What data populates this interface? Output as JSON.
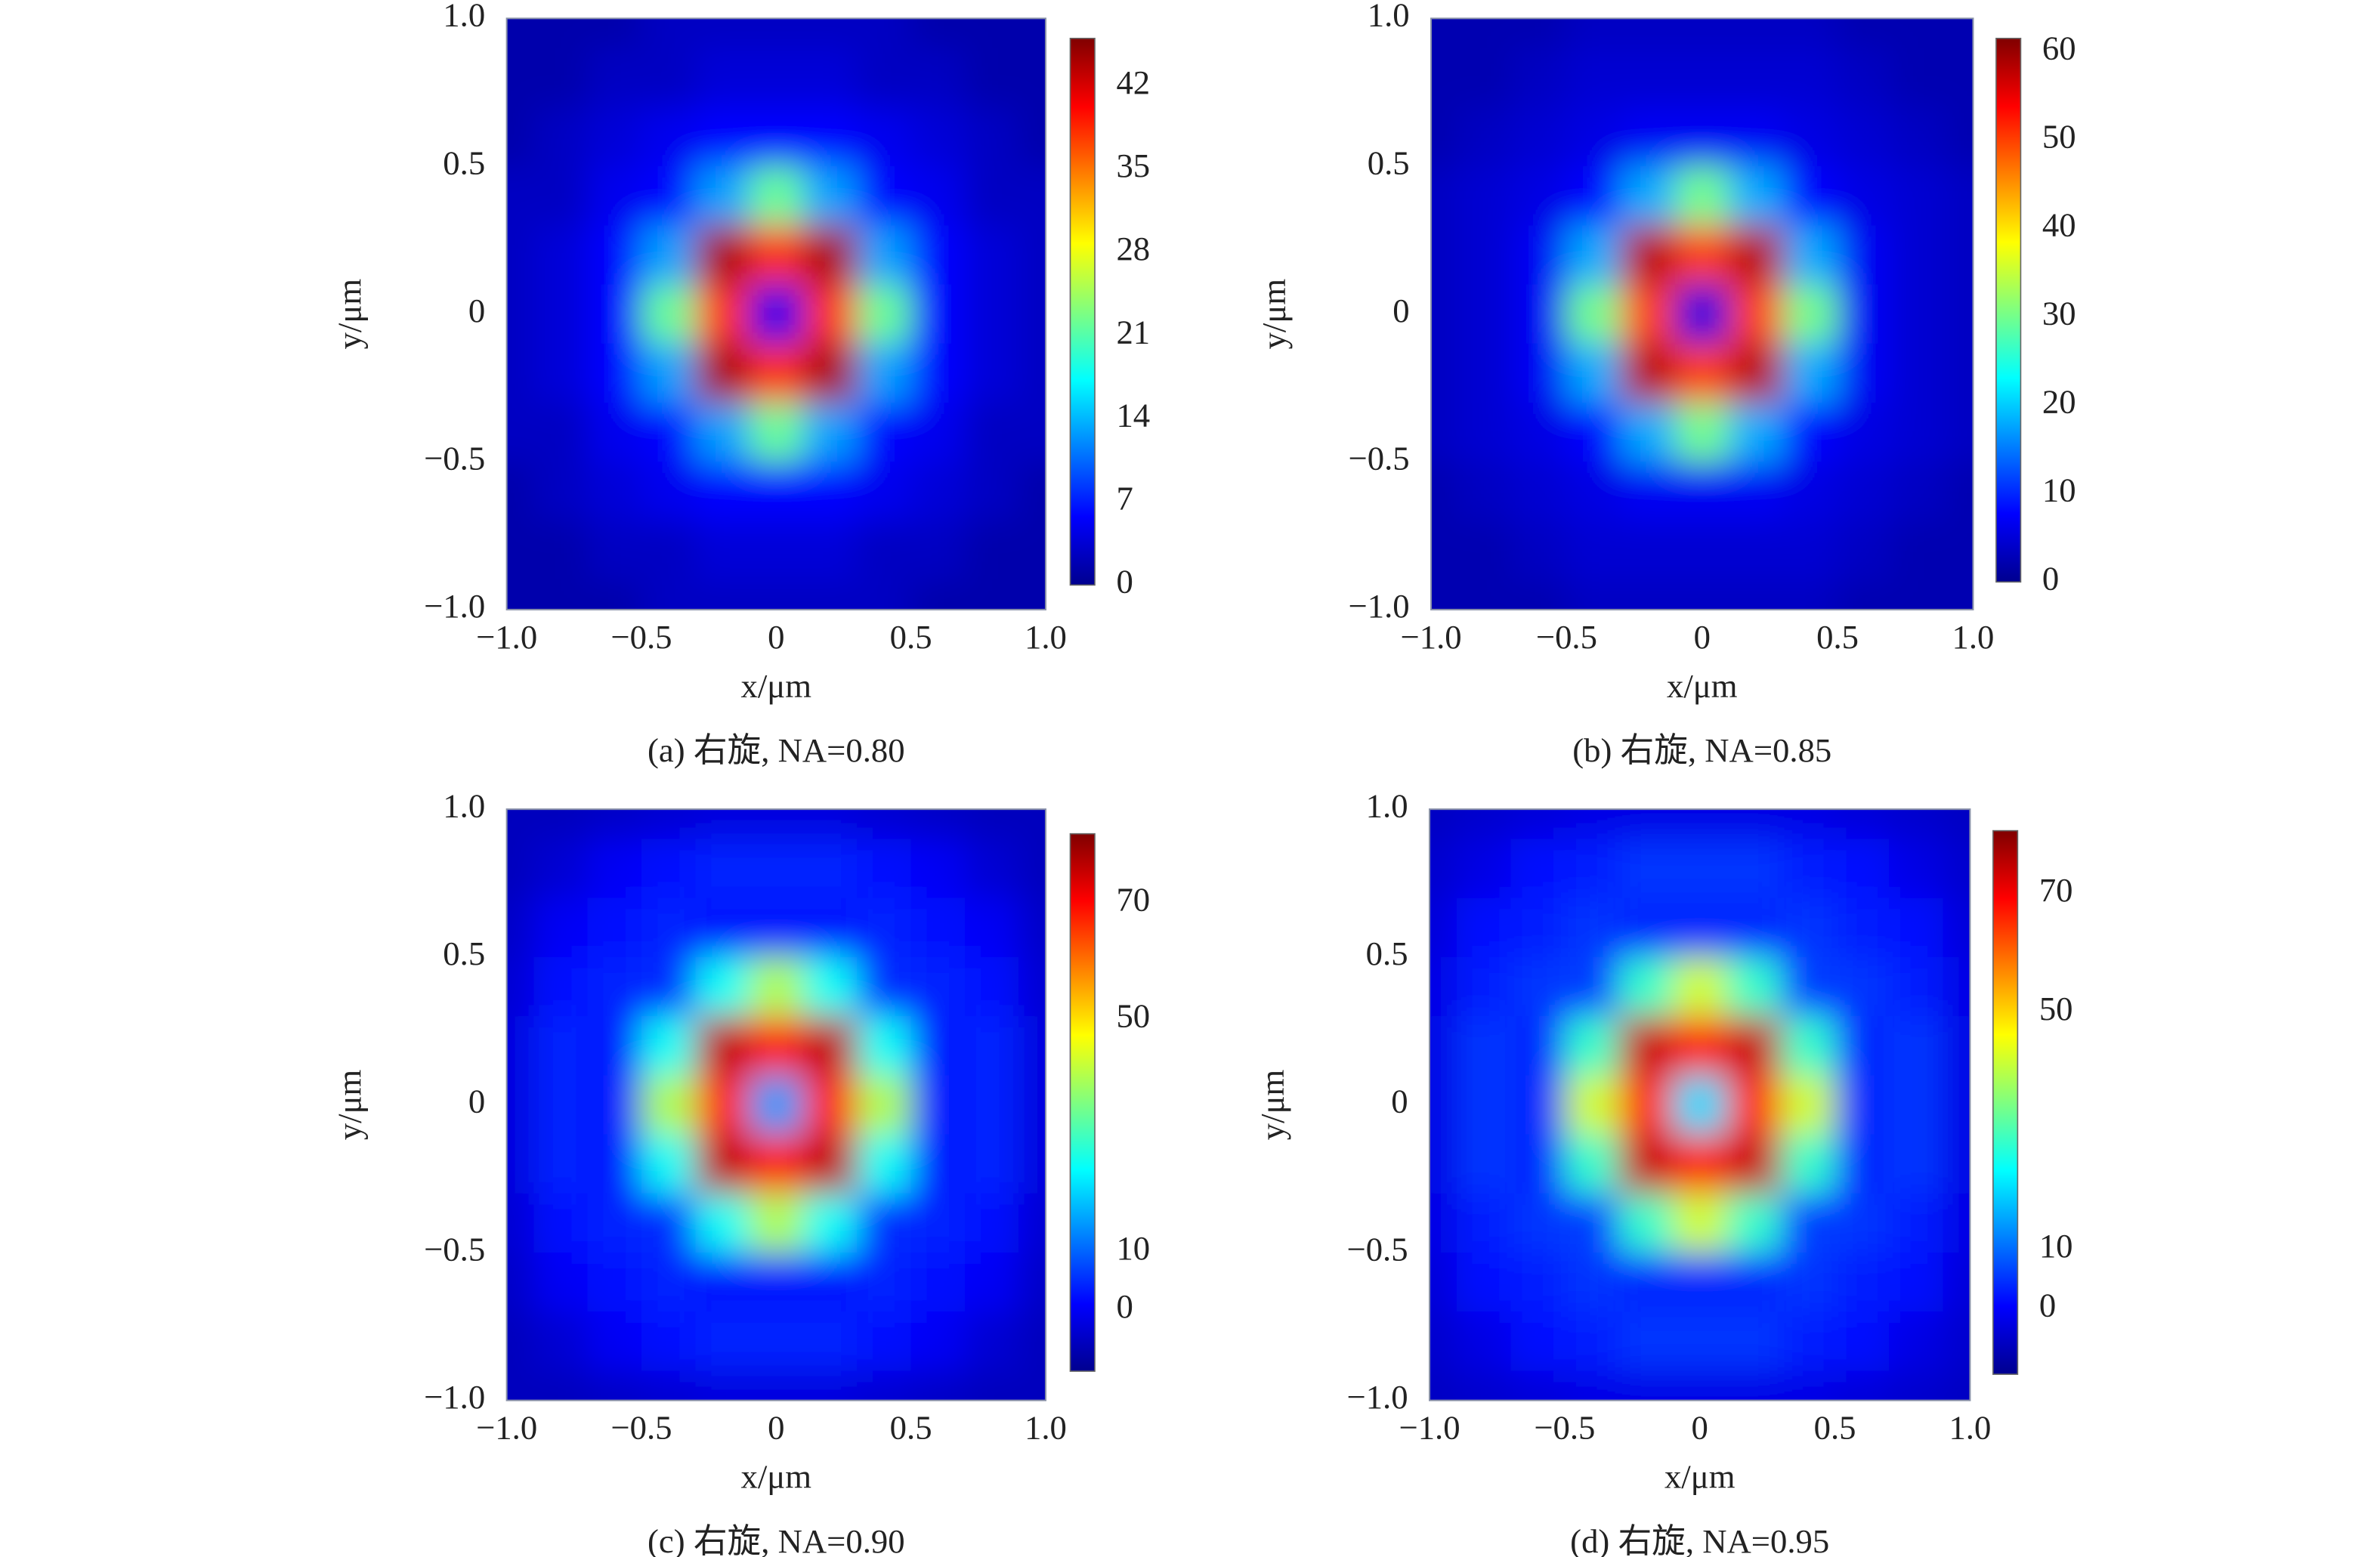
{
  "chart_data": [
    {
      "type": "heatmap",
      "title": "(a) 右旋, NA=0.80",
      "xlabel": "x/μm",
      "ylabel": "y/μm",
      "colormap": "jet",
      "xlim": [
        -1,
        1
      ],
      "ylim": [
        -1,
        1
      ],
      "xticks": [
        {
          "value": -1,
          "label": "−1.0"
        },
        {
          "value": -0.5,
          "label": "−0.5"
        },
        0,
        0.5,
        {
          "value": 1,
          "label": "1.0"
        }
      ],
      "yticks": [
        {
          "value": 1,
          "label": "1.0"
        },
        0.5,
        0,
        {
          "value": -0.5,
          "label": "−0.5"
        },
        {
          "value": -1,
          "label": "−1.0"
        }
      ],
      "clim": [
        0,
        46
      ],
      "cticks": [
        0,
        7,
        14,
        21,
        28,
        35,
        42
      ],
      "x": [
        -1,
        -0.8,
        -0.6,
        -0.4,
        -0.2,
        0,
        0.2,
        0.4,
        0.6,
        0.8,
        1
      ],
      "y": [
        1,
        0.8,
        0.6,
        0.4,
        0.2,
        0,
        -0.2,
        -0.4,
        -0.6,
        -0.8,
        -1
      ],
      "z": [
        [
          2,
          2,
          2,
          3,
          3,
          3,
          3,
          3,
          2,
          2,
          2
        ],
        [
          2,
          2,
          3,
          3,
          4,
          4,
          4,
          3,
          3,
          2,
          2
        ],
        [
          2,
          3,
          4,
          5,
          6,
          6,
          6,
          5,
          4,
          3,
          2
        ],
        [
          3,
          3,
          5,
          6,
          13,
          22,
          13,
          6,
          5,
          3,
          3
        ],
        [
          3,
          4,
          6,
          13,
          44,
          38,
          44,
          13,
          6,
          4,
          3
        ],
        [
          3,
          4,
          6,
          22,
          38,
          5,
          38,
          22,
          6,
          4,
          3
        ],
        [
          3,
          4,
          6,
          13,
          44,
          38,
          44,
          13,
          6,
          4,
          3
        ],
        [
          3,
          3,
          5,
          6,
          13,
          22,
          13,
          6,
          5,
          3,
          3
        ],
        [
          2,
          3,
          4,
          5,
          6,
          6,
          6,
          5,
          4,
          3,
          2
        ],
        [
          2,
          2,
          3,
          3,
          4,
          4,
          4,
          3,
          3,
          2,
          2
        ],
        [
          2,
          2,
          2,
          3,
          3,
          3,
          3,
          3,
          2,
          2,
          2
        ]
      ]
    },
    {
      "type": "heatmap",
      "title": "(b) 右旋, NA=0.85",
      "xlabel": "x/μm",
      "ylabel": "y/μm",
      "colormap": "jet",
      "xlim": [
        -1,
        1
      ],
      "ylim": [
        -1,
        1
      ],
      "xticks": [
        {
          "value": -1,
          "label": "−1.0"
        },
        {
          "value": -0.5,
          "label": "−0.5"
        },
        0,
        0.5,
        {
          "value": 1,
          "label": "1.0"
        }
      ],
      "yticks": [
        {
          "value": 1,
          "label": "1.0"
        },
        0.5,
        0,
        {
          "value": -0.5,
          "label": "−0.5"
        },
        {
          "value": -1,
          "label": "−1.0"
        }
      ],
      "clim": [
        0,
        61.5
      ],
      "cticks": [
        0,
        10,
        20,
        30,
        40,
        50,
        60
      ],
      "x": [
        -1,
        -0.8,
        -0.6,
        -0.4,
        -0.2,
        0,
        0.2,
        0.4,
        0.6,
        0.8,
        1
      ],
      "y": [
        1,
        0.8,
        0.6,
        0.4,
        0.2,
        0,
        -0.2,
        -0.4,
        -0.6,
        -0.8,
        -1
      ],
      "z": [
        [
          3,
          3,
          3,
          4,
          4,
          4,
          4,
          4,
          3,
          3,
          3
        ],
        [
          3,
          3,
          4,
          5,
          5,
          5,
          5,
          5,
          4,
          3,
          3
        ],
        [
          3,
          4,
          5,
          6,
          7,
          7,
          7,
          6,
          5,
          4,
          3
        ],
        [
          4,
          5,
          6,
          8,
          18,
          30,
          18,
          8,
          6,
          5,
          4
        ],
        [
          4,
          5,
          7,
          18,
          58,
          50,
          58,
          18,
          7,
          5,
          4
        ],
        [
          4,
          5,
          7,
          30,
          50,
          6,
          50,
          30,
          7,
          5,
          4
        ],
        [
          4,
          5,
          7,
          18,
          58,
          50,
          58,
          18,
          7,
          5,
          4
        ],
        [
          4,
          5,
          6,
          8,
          18,
          30,
          18,
          8,
          6,
          5,
          4
        ],
        [
          3,
          4,
          5,
          6,
          7,
          7,
          7,
          6,
          5,
          4,
          3
        ],
        [
          3,
          3,
          4,
          5,
          5,
          5,
          5,
          5,
          4,
          3,
          3
        ],
        [
          3,
          3,
          3,
          4,
          4,
          4,
          4,
          4,
          3,
          3,
          3
        ]
      ]
    },
    {
      "type": "heatmap",
      "title": "(c) 右旋, NA=0.90",
      "xlabel": "x/μm",
      "ylabel": "y/μm",
      "colormap": "jet",
      "xlim": [
        -1,
        1
      ],
      "ylim": [
        -1,
        1
      ],
      "xticks": [
        {
          "value": -1,
          "label": "−1.0"
        },
        {
          "value": -0.5,
          "label": "−0.5"
        },
        0,
        0.5,
        {
          "value": 1,
          "label": "1.0"
        }
      ],
      "yticks": [
        {
          "value": 1,
          "label": "1.0"
        },
        0.5,
        0,
        {
          "value": -0.5,
          "label": "−0.5"
        },
        {
          "value": -1,
          "label": "−1.0"
        }
      ],
      "clim": [
        -10.6,
        81.9
      ],
      "cticks": [
        0,
        10,
        50,
        70
      ],
      "x": [
        -1,
        -0.8,
        -0.6,
        -0.4,
        -0.2,
        0,
        0.2,
        0.4,
        0.6,
        0.8,
        1
      ],
      "y": [
        1,
        0.8,
        0.6,
        0.4,
        0.2,
        0,
        -0.2,
        -0.4,
        -0.6,
        -0.8,
        -1
      ],
      "z": [
        [
          -5,
          -5,
          -4,
          -3,
          -2,
          -2,
          -2,
          -3,
          -4,
          -5,
          -5
        ],
        [
          -5,
          -3,
          0,
          2,
          4,
          4,
          4,
          2,
          0,
          -3,
          -5
        ],
        [
          -4,
          0,
          2,
          4,
          3,
          3,
          3,
          4,
          2,
          0,
          -4
        ],
        [
          -3,
          2,
          4,
          5,
          25,
          40,
          25,
          5,
          4,
          2,
          -3
        ],
        [
          -2,
          4,
          3,
          25,
          76,
          68,
          76,
          25,
          3,
          4,
          -2
        ],
        [
          -2,
          4,
          3,
          40,
          68,
          15,
          68,
          40,
          3,
          4,
          -2
        ],
        [
          -2,
          4,
          3,
          25,
          76,
          68,
          76,
          25,
          3,
          4,
          -2
        ],
        [
          -3,
          2,
          4,
          5,
          25,
          40,
          25,
          5,
          4,
          2,
          -3
        ],
        [
          -4,
          0,
          2,
          4,
          3,
          3,
          3,
          4,
          2,
          0,
          -4
        ],
        [
          -5,
          -3,
          0,
          2,
          4,
          4,
          4,
          2,
          0,
          -3,
          -5
        ],
        [
          -5,
          -5,
          -4,
          -3,
          -2,
          -2,
          -2,
          -3,
          -4,
          -5,
          -5
        ]
      ]
    },
    {
      "type": "heatmap",
      "title": "(d) 右旋, NA=0.95",
      "xlabel": "x/μm",
      "ylabel": "y/μm",
      "colormap": "jet",
      "xlim": [
        -1,
        1
      ],
      "ylim": [
        -1,
        1
      ],
      "xticks": [
        {
          "value": -1,
          "label": "−1.0"
        },
        {
          "value": -0.5,
          "label": "−0.5"
        },
        0,
        0.5,
        {
          "value": 1,
          "label": "1.0"
        }
      ],
      "yticks": [
        {
          "value": 1,
          "label": "1.0"
        },
        0.5,
        0,
        {
          "value": -0.5,
          "label": "−0.5"
        },
        {
          "value": -1,
          "label": "−1.0"
        }
      ],
      "clim": [
        -11.1,
        80.6
      ],
      "cticks": [
        0,
        10,
        50,
        70
      ],
      "x": [
        -1,
        -0.8,
        -0.6,
        -0.4,
        -0.2,
        0,
        0.2,
        0.4,
        0.6,
        0.8,
        1
      ],
      "y": [
        1,
        0.8,
        0.6,
        0.4,
        0.2,
        0,
        -0.2,
        -0.4,
        -0.6,
        -0.8,
        -1
      ],
      "z": [
        [
          -5,
          -4,
          -3,
          -2,
          -2,
          -2,
          -2,
          -2,
          -3,
          -4,
          -5
        ],
        [
          -4,
          -2,
          1,
          3,
          5,
          5,
          5,
          3,
          1,
          -2,
          -4
        ],
        [
          -3,
          1,
          3,
          5,
          4,
          4,
          4,
          5,
          3,
          1,
          -3
        ],
        [
          -2,
          3,
          5,
          6,
          28,
          42,
          28,
          6,
          5,
          3,
          -2
        ],
        [
          -2,
          5,
          4,
          28,
          74,
          66,
          74,
          28,
          4,
          5,
          -2
        ],
        [
          -2,
          5,
          4,
          42,
          66,
          20,
          66,
          42,
          4,
          5,
          -2
        ],
        [
          -2,
          5,
          4,
          28,
          74,
          66,
          74,
          28,
          4,
          5,
          -2
        ],
        [
          -2,
          3,
          5,
          6,
          28,
          42,
          28,
          6,
          5,
          3,
          -2
        ],
        [
          -3,
          1,
          3,
          5,
          4,
          4,
          4,
          5,
          3,
          1,
          -3
        ],
        [
          -4,
          -2,
          1,
          3,
          5,
          5,
          5,
          3,
          1,
          -2,
          -4
        ],
        [
          -5,
          -4,
          -3,
          -2,
          -2,
          -2,
          -2,
          -2,
          -3,
          -4,
          -5
        ]
      ]
    }
  ]
}
